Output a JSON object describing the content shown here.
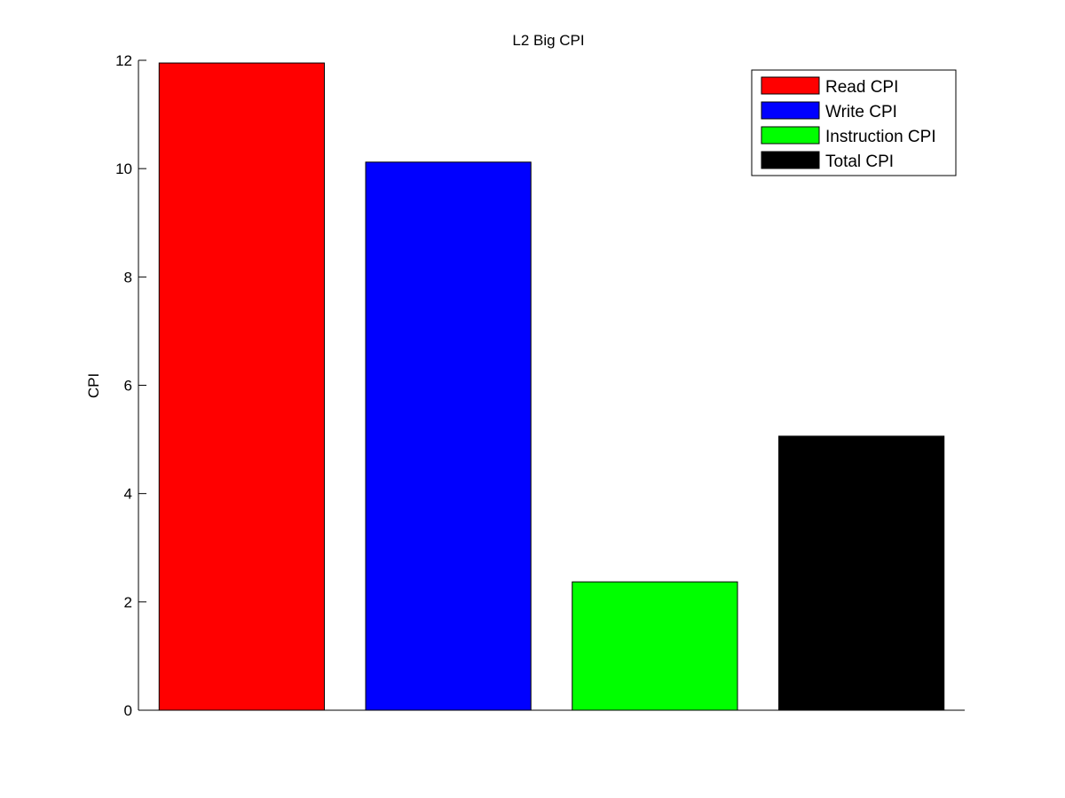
{
  "chart_data": {
    "type": "bar",
    "title": "L2 Big CPI",
    "xlabel": "",
    "ylabel": "CPI",
    "ylim": [
      0,
      12
    ],
    "yticks": [
      0,
      2,
      4,
      6,
      8,
      10,
      12
    ],
    "grid": false,
    "legend_position": "top-right",
    "series": [
      {
        "name": "Read CPI",
        "value": 11.95,
        "color": "#ff0000"
      },
      {
        "name": "Write CPI",
        "value": 10.12,
        "color": "#0000ff"
      },
      {
        "name": "Instruction CPI",
        "value": 2.37,
        "color": "#00ff00"
      },
      {
        "name": "Total CPI",
        "value": 5.06,
        "color": "#000000"
      }
    ]
  }
}
